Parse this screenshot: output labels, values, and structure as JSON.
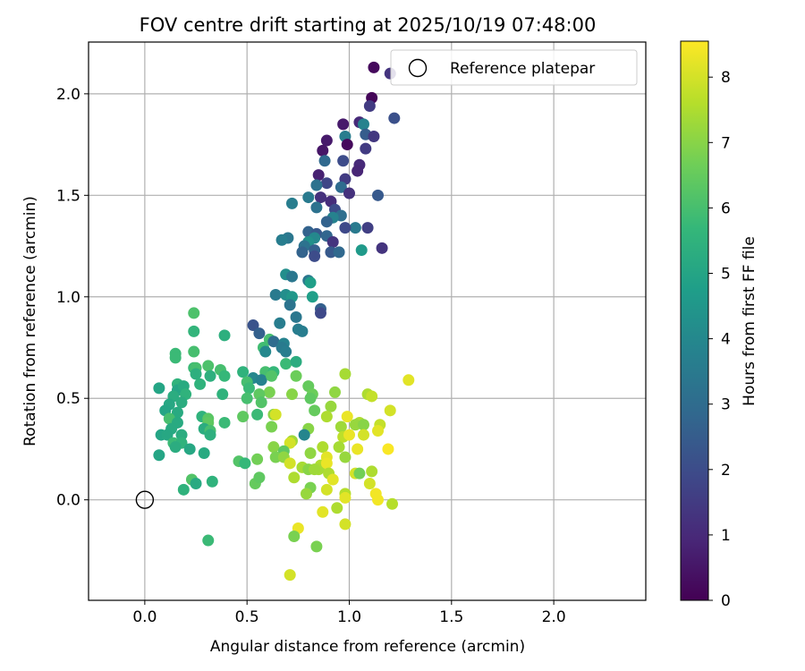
{
  "chart_data": {
    "type": "scatter",
    "title": "FOV centre drift starting at 2025/10/19 07:48:00",
    "xlabel": "Angular distance from reference (arcmin)",
    "ylabel": "Rotation from reference (arcmin)",
    "xlim": [
      -0.275,
      2.45
    ],
    "ylim": [
      -0.495,
      2.255
    ],
    "xticks": [
      0.0,
      0.5,
      1.0,
      1.5,
      2.0
    ],
    "yticks": [
      0.0,
      0.5,
      1.0,
      1.5,
      2.0
    ],
    "tick_labels_x": [
      "0.0",
      "0.5",
      "1.0",
      "1.5",
      "2.0"
    ],
    "tick_labels_y": [
      "0.0",
      "0.5",
      "1.0",
      "1.5",
      "2.0"
    ],
    "grid": true,
    "legend": {
      "position": "top-right",
      "entries": [
        {
          "label": "Reference platepar",
          "marker": "open-circle"
        }
      ]
    },
    "reference_point": {
      "x": 0.0,
      "y": 0.0
    },
    "colorbar": {
      "label": "Hours from first FF file",
      "min": 0,
      "max": 8.55,
      "ticks": [
        0,
        1,
        2,
        3,
        4,
        5,
        6,
        7,
        8
      ],
      "tick_labels": [
        "0",
        "1",
        "2",
        "3",
        "4",
        "5",
        "6",
        "7",
        "8"
      ],
      "colormap": "viridis",
      "colormap_stops": [
        "#440154",
        "#482878",
        "#3e4989",
        "#31688e",
        "#26828e",
        "#1f9e89",
        "#35b779",
        "#6ece58",
        "#b5de2b",
        "#fde725"
      ]
    },
    "series_columns": [
      "x",
      "y",
      "hours"
    ],
    "points": [
      [
        1.12,
        2.13,
        0.2
      ],
      [
        1.2,
        2.1,
        1.3
      ],
      [
        1.11,
        1.98,
        0.1
      ],
      [
        1.1,
        1.94,
        1.5
      ],
      [
        1.22,
        1.88,
        2.1
      ],
      [
        0.97,
        1.85,
        0.6
      ],
      [
        1.05,
        1.86,
        1.0
      ],
      [
        1.07,
        1.85,
        3.8
      ],
      [
        1.08,
        1.8,
        2.5
      ],
      [
        1.12,
        1.79,
        1.4
      ],
      [
        0.98,
        1.79,
        3.6
      ],
      [
        0.89,
        1.77,
        0.6
      ],
      [
        0.99,
        1.75,
        0.2
      ],
      [
        1.08,
        1.73,
        1.5
      ],
      [
        0.87,
        1.72,
        0.5
      ],
      [
        0.88,
        1.67,
        2.9
      ],
      [
        0.97,
        1.67,
        2.0
      ],
      [
        1.05,
        1.65,
        1.0
      ],
      [
        1.04,
        1.62,
        0.9
      ],
      [
        0.85,
        1.6,
        0.8
      ],
      [
        0.98,
        1.58,
        1.5
      ],
      [
        0.89,
        1.56,
        1.8
      ],
      [
        0.84,
        1.55,
        3.2
      ],
      [
        0.96,
        1.54,
        3.0
      ],
      [
        1.0,
        1.51,
        1.2
      ],
      [
        1.14,
        1.5,
        2.4
      ],
      [
        0.8,
        1.49,
        3.5
      ],
      [
        0.86,
        1.49,
        1.2
      ],
      [
        0.91,
        1.47,
        1.1
      ],
      [
        0.72,
        1.46,
        3.6
      ],
      [
        0.84,
        1.44,
        3.2
      ],
      [
        0.93,
        1.43,
        2.0
      ],
      [
        0.96,
        1.4,
        3.1
      ],
      [
        0.92,
        1.39,
        3.8
      ],
      [
        0.89,
        1.37,
        2.7
      ],
      [
        1.09,
        1.34,
        1.6
      ],
      [
        1.03,
        1.34,
        3.5
      ],
      [
        0.98,
        1.34,
        1.9
      ],
      [
        0.8,
        1.32,
        2.7
      ],
      [
        0.84,
        1.31,
        2.4
      ],
      [
        0.89,
        1.3,
        2.8
      ],
      [
        0.83,
        1.29,
        4.0
      ],
      [
        0.7,
        1.29,
        3.4
      ],
      [
        0.67,
        1.28,
        3.6
      ],
      [
        0.92,
        1.27,
        1.3
      ],
      [
        0.8,
        1.27,
        4.3
      ],
      [
        0.78,
        1.25,
        3.2
      ],
      [
        0.83,
        1.23,
        2.6
      ],
      [
        0.91,
        1.22,
        2.4
      ],
      [
        0.95,
        1.22,
        2.9
      ],
      [
        1.06,
        1.23,
        4.6
      ],
      [
        1.16,
        1.24,
        1.3
      ],
      [
        0.77,
        1.22,
        2.7
      ],
      [
        0.83,
        1.2,
        2.0
      ],
      [
        0.69,
        1.11,
        4.2
      ],
      [
        0.72,
        1.1,
        3.4
      ],
      [
        0.8,
        1.08,
        3.4
      ],
      [
        0.81,
        1.07,
        4.8
      ],
      [
        0.64,
        1.01,
        3.5
      ],
      [
        0.69,
        1.01,
        4.2
      ],
      [
        0.72,
        1.0,
        4.5
      ],
      [
        0.82,
        1.0,
        4.8
      ],
      [
        0.71,
        0.96,
        3.3
      ],
      [
        0.86,
        0.94,
        2.6
      ],
      [
        0.86,
        0.92,
        1.9
      ],
      [
        0.74,
        0.9,
        3.4
      ],
      [
        0.66,
        0.87,
        3.6
      ],
      [
        0.75,
        0.84,
        3.6
      ],
      [
        0.53,
        0.86,
        2.2
      ],
      [
        0.77,
        0.83,
        3.6
      ],
      [
        0.56,
        0.82,
        2.6
      ],
      [
        0.61,
        0.79,
        6.0
      ],
      [
        0.63,
        0.78,
        3.0
      ],
      [
        0.68,
        0.77,
        3.8
      ],
      [
        0.67,
        0.75,
        3.5
      ],
      [
        0.58,
        0.75,
        5.9
      ],
      [
        0.59,
        0.73,
        4.0
      ],
      [
        0.69,
        0.73,
        3.6
      ],
      [
        0.69,
        0.67,
        5.8
      ],
      [
        0.74,
        0.68,
        5.3
      ],
      [
        0.59,
        0.63,
        6.0
      ],
      [
        0.63,
        0.63,
        5.7
      ],
      [
        0.48,
        0.63,
        5.5
      ],
      [
        0.53,
        0.6,
        4.0
      ],
      [
        0.57,
        0.59,
        3.8
      ],
      [
        0.62,
        0.61,
        6.2
      ],
      [
        0.74,
        0.61,
        6.6
      ],
      [
        0.5,
        0.58,
        6.0
      ],
      [
        0.8,
        0.56,
        6.5
      ],
      [
        0.51,
        0.55,
        5.8
      ],
      [
        0.61,
        0.53,
        6.8
      ],
      [
        0.72,
        0.52,
        7.0
      ],
      [
        0.82,
        0.52,
        6.6
      ],
      [
        0.56,
        0.52,
        6.4
      ],
      [
        0.93,
        0.53,
        7.1
      ],
      [
        0.5,
        0.5,
        6.0
      ],
      [
        0.98,
        0.62,
        7.4
      ],
      [
        1.09,
        0.52,
        7.5
      ],
      [
        1.11,
        0.51,
        7.8
      ],
      [
        1.29,
        0.59,
        8.2
      ],
      [
        0.57,
        0.48,
        6.2
      ],
      [
        0.81,
        0.5,
        6.4
      ],
      [
        0.83,
        0.44,
        6.5
      ],
      [
        0.91,
        0.46,
        7.2
      ],
      [
        0.63,
        0.42,
        7.0
      ],
      [
        0.64,
        0.42,
        8.0
      ],
      [
        0.48,
        0.41,
        6.4
      ],
      [
        0.55,
        0.42,
        5.8
      ],
      [
        0.89,
        0.41,
        7.5
      ],
      [
        0.99,
        0.41,
        8.3
      ],
      [
        1.05,
        0.38,
        7.5
      ],
      [
        1.03,
        0.37,
        7.2
      ],
      [
        1.07,
        0.37,
        7.0
      ],
      [
        1.15,
        0.37,
        7.8
      ],
      [
        0.96,
        0.36,
        7.3
      ],
      [
        1.2,
        0.44,
        8.0
      ],
      [
        0.62,
        0.36,
        6.8
      ],
      [
        1.14,
        0.34,
        8.2
      ],
      [
        0.8,
        0.35,
        7.0
      ],
      [
        0.78,
        0.32,
        3.9
      ],
      [
        0.97,
        0.31,
        7.7
      ],
      [
        1.0,
        0.32,
        8.3
      ],
      [
        1.07,
        0.32,
        8.0
      ],
      [
        0.72,
        0.29,
        7.3
      ],
      [
        0.71,
        0.28,
        8.0
      ],
      [
        0.63,
        0.26,
        7.0
      ],
      [
        0.87,
        0.26,
        7.5
      ],
      [
        0.95,
        0.26,
        7.4
      ],
      [
        0.68,
        0.24,
        6.4
      ],
      [
        0.81,
        0.23,
        7.1
      ],
      [
        1.04,
        0.25,
        8.3
      ],
      [
        1.19,
        0.25,
        8.5
      ],
      [
        0.64,
        0.21,
        6.8
      ],
      [
        0.68,
        0.21,
        7.1
      ],
      [
        0.89,
        0.21,
        8.2
      ],
      [
        0.98,
        0.21,
        7.2
      ],
      [
        0.77,
        0.16,
        7.4
      ],
      [
        0.86,
        0.17,
        7.5
      ],
      [
        0.85,
        0.15,
        7.4
      ],
      [
        0.8,
        0.15,
        7.0
      ],
      [
        0.83,
        0.15,
        7.3
      ],
      [
        0.55,
        0.2,
        6.7
      ],
      [
        0.46,
        0.19,
        6.2
      ],
      [
        0.49,
        0.18,
        5.7
      ],
      [
        0.71,
        0.18,
        8.0
      ],
      [
        0.89,
        0.18,
        8.3
      ],
      [
        0.9,
        0.13,
        7.5
      ],
      [
        1.03,
        0.13,
        8.0
      ],
      [
        1.05,
        0.13,
        6.7
      ],
      [
        1.11,
        0.14,
        7.5
      ],
      [
        0.73,
        0.11,
        7.5
      ],
      [
        0.92,
        0.1,
        8.2
      ],
      [
        0.54,
        0.08,
        6.5
      ],
      [
        0.56,
        0.11,
        6.4
      ],
      [
        0.81,
        0.06,
        6.8
      ],
      [
        1.1,
        0.08,
        8.0
      ],
      [
        0.89,
        0.05,
        8.0
      ],
      [
        1.13,
        0.03,
        8.4
      ],
      [
        0.98,
        0.03,
        7.6
      ],
      [
        0.98,
        0.01,
        8.2
      ],
      [
        0.79,
        0.03,
        7.2
      ],
      [
        1.14,
        0.0,
        8.4
      ],
      [
        1.21,
        -0.02,
        7.6
      ],
      [
        0.94,
        -0.04,
        7.5
      ],
      [
        0.87,
        -0.06,
        8.2
      ],
      [
        0.98,
        -0.12,
        8.0
      ],
      [
        0.75,
        -0.14,
        8.3
      ],
      [
        0.73,
        -0.18,
        6.8
      ],
      [
        0.84,
        -0.23,
        6.8
      ],
      [
        0.71,
        -0.37,
        8.0
      ],
      [
        0.24,
        0.92,
        6.1
      ],
      [
        0.24,
        0.83,
        5.6
      ],
      [
        0.39,
        0.81,
        5.4
      ],
      [
        0.15,
        0.72,
        5.8
      ],
      [
        0.15,
        0.7,
        5.8
      ],
      [
        0.24,
        0.73,
        6.0
      ],
      [
        0.24,
        0.65,
        5.8
      ],
      [
        0.25,
        0.65,
        6.0
      ],
      [
        0.31,
        0.66,
        6.1
      ],
      [
        0.37,
        0.64,
        6.0
      ],
      [
        0.25,
        0.62,
        5.4
      ],
      [
        0.32,
        0.61,
        5.4
      ],
      [
        0.39,
        0.61,
        5.7
      ],
      [
        0.16,
        0.57,
        5.5
      ],
      [
        0.16,
        0.54,
        5.0
      ],
      [
        0.19,
        0.56,
        5.2
      ],
      [
        0.27,
        0.57,
        5.5
      ],
      [
        0.07,
        0.55,
        5.0
      ],
      [
        0.2,
        0.52,
        5.5
      ],
      [
        0.14,
        0.51,
        5.3
      ],
      [
        0.38,
        0.52,
        5.5
      ],
      [
        0.12,
        0.47,
        5.1
      ],
      [
        0.18,
        0.48,
        5.3
      ],
      [
        0.1,
        0.44,
        5.0
      ],
      [
        0.16,
        0.43,
        5.2
      ],
      [
        0.12,
        0.4,
        6.0
      ],
      [
        0.28,
        0.41,
        5.5
      ],
      [
        0.31,
        0.4,
        6.3
      ],
      [
        0.31,
        0.38,
        6.4
      ],
      [
        0.39,
        0.38,
        5.8
      ],
      [
        0.16,
        0.38,
        5.2
      ],
      [
        0.13,
        0.35,
        5.2
      ],
      [
        0.29,
        0.35,
        5.3
      ],
      [
        0.32,
        0.34,
        6.0
      ],
      [
        0.08,
        0.32,
        5.0
      ],
      [
        0.11,
        0.32,
        5.1
      ],
      [
        0.18,
        0.32,
        5.3
      ],
      [
        0.32,
        0.32,
        5.4
      ],
      [
        0.14,
        0.28,
        5.8
      ],
      [
        0.18,
        0.28,
        5.5
      ],
      [
        0.15,
        0.26,
        5.3
      ],
      [
        0.22,
        0.25,
        5.1
      ],
      [
        0.29,
        0.23,
        5.2
      ],
      [
        0.07,
        0.22,
        5.0
      ],
      [
        0.23,
        0.1,
        6.2
      ],
      [
        0.25,
        0.08,
        5.2
      ],
      [
        0.33,
        0.09,
        5.5
      ],
      [
        0.19,
        0.05,
        5.5
      ],
      [
        0.31,
        -0.2,
        5.8
      ]
    ]
  }
}
